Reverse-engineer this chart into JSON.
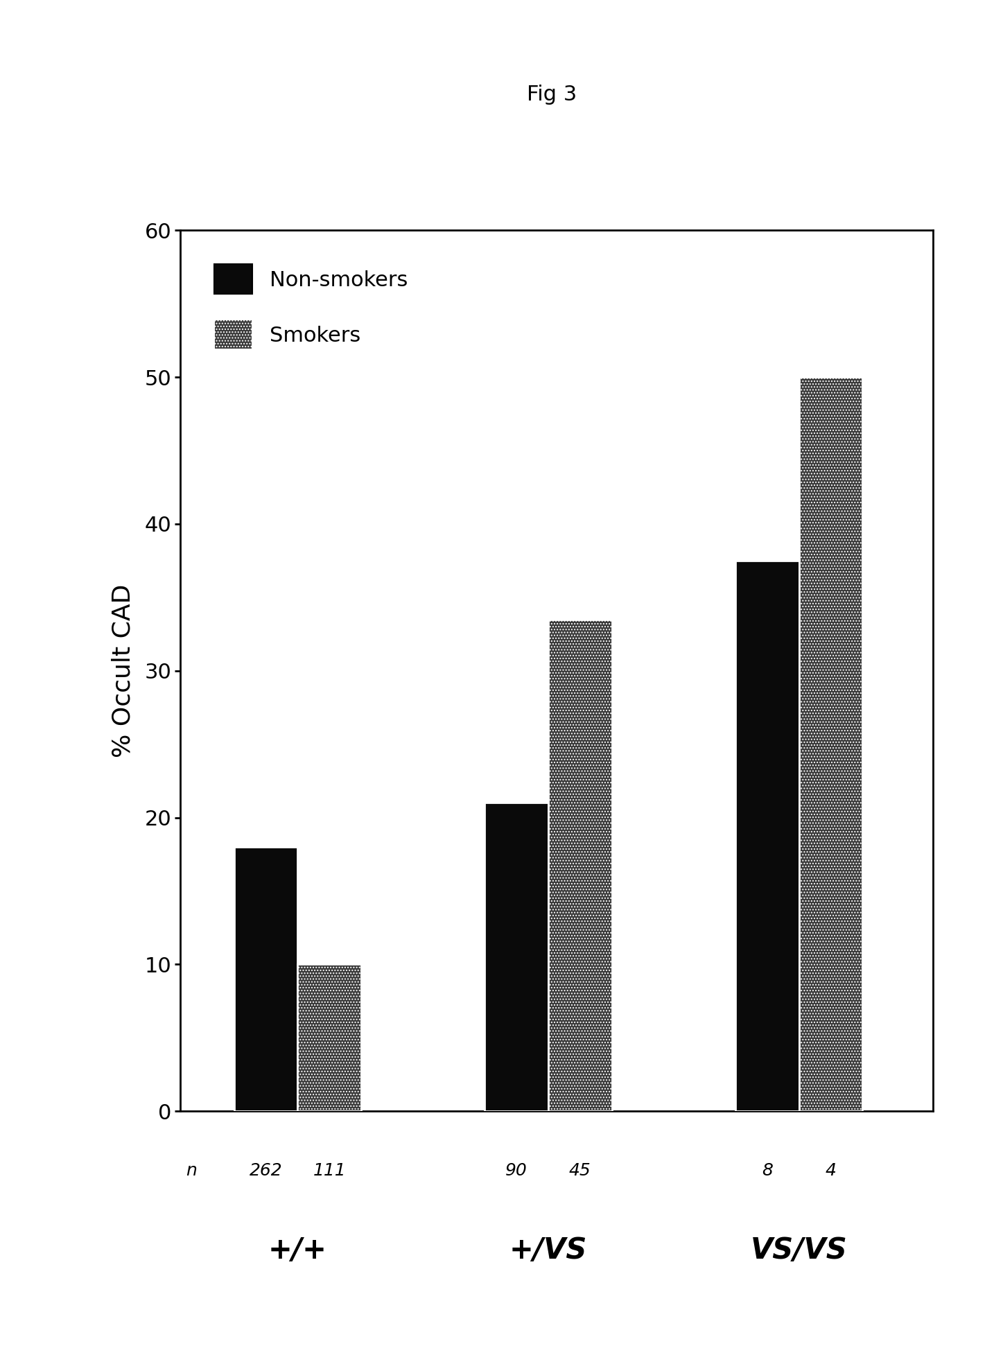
{
  "title": "Fig 3",
  "ylabel": "% Occult CAD",
  "ylim": [
    0,
    60
  ],
  "yticks": [
    0,
    10,
    20,
    30,
    40,
    50,
    60
  ],
  "groups": [
    "+/+",
    "+/VS",
    "VS/VS"
  ],
  "non_smoker_values": [
    18,
    21,
    37.5
  ],
  "smoker_values": [
    10,
    33.5,
    50
  ],
  "n_nonsmoker": [
    "262",
    "90",
    "8"
  ],
  "n_smoker": [
    "111",
    "45",
    "4"
  ],
  "n_label": "n",
  "bar_width": 0.38,
  "group_positions": [
    1.0,
    2.5,
    4.0
  ],
  "non_smoker_color": "#0a0a0a",
  "smoker_color": "#555555",
  "legend_nonsmoker": "Non-smokers",
  "legend_smoker": "Smokers",
  "background_color": "#ffffff",
  "title_fontsize": 22,
  "ylabel_fontsize": 26,
  "tick_fontsize": 22,
  "legend_fontsize": 22,
  "group_label_fontsize": 30,
  "n_fontsize": 18,
  "fig_width": 14.47,
  "fig_height": 19.55,
  "dpi": 100
}
